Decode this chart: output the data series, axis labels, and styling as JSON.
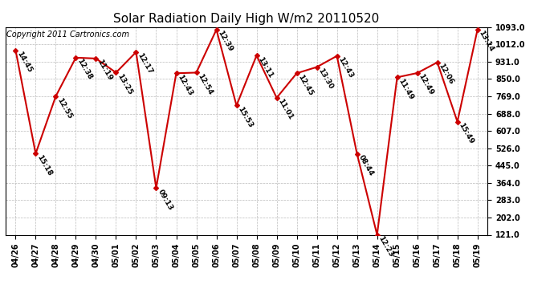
{
  "title": "Solar Radiation Daily High W/m2 20110520",
  "copyright": "Copyright 2011 Cartronics.com",
  "dates": [
    "04/26",
    "04/27",
    "04/28",
    "04/29",
    "04/30",
    "05/01",
    "05/02",
    "05/03",
    "05/04",
    "05/05",
    "05/06",
    "05/07",
    "05/08",
    "05/09",
    "05/10",
    "05/11",
    "05/12",
    "05/13",
    "05/14",
    "05/15",
    "05/16",
    "05/17",
    "05/18",
    "05/19"
  ],
  "values": [
    985,
    501,
    769,
    950,
    946,
    880,
    976,
    340,
    877,
    880,
    1081,
    726,
    960,
    762,
    877,
    906,
    958,
    500,
    121,
    858,
    878,
    928,
    650,
    1081
  ],
  "labels": [
    "14:45",
    "15:18",
    "12:55",
    "12:38",
    "11:19",
    "13:25",
    "12:17",
    "09:13",
    "12:43",
    "12:54",
    "12:39",
    "15:53",
    "13:11",
    "11:01",
    "12:45",
    "13:30",
    "12:43",
    "08:44",
    "12:23",
    "11:49",
    "12:49",
    "12:06",
    "15:49",
    "13:14"
  ],
  "line_color": "#cc0000",
  "marker_color": "#cc0000",
  "bg_color": "#ffffff",
  "grid_color": "#bbbbbb",
  "ylim_min": 121.0,
  "ylim_max": 1093.0,
  "yticks": [
    121.0,
    202.0,
    283.0,
    364.0,
    445.0,
    526.0,
    607.0,
    688.0,
    769.0,
    850.0,
    931.0,
    1012.0,
    1093.0
  ],
  "title_fontsize": 11,
  "label_fontsize": 6.5,
  "tick_fontsize": 7,
  "copyright_fontsize": 7
}
